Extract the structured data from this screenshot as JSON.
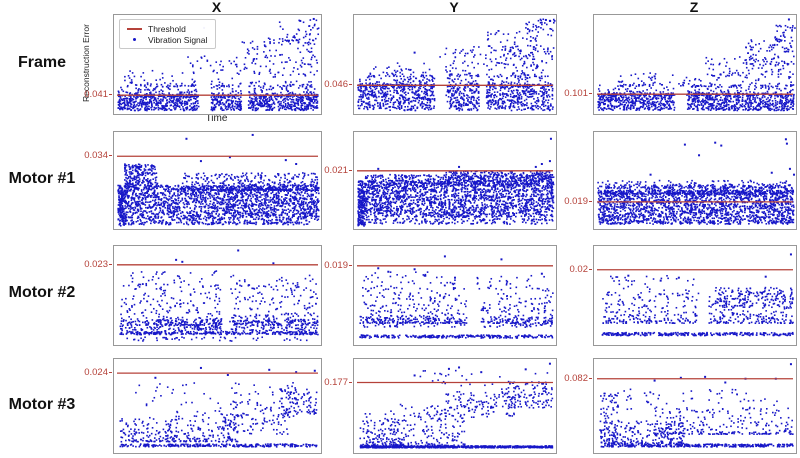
{
  "figure": {
    "columns": [
      "X",
      "Y",
      "Z"
    ],
    "rows": [
      "Frame",
      "Motor #1",
      "Motor #2",
      "Motor #3"
    ],
    "ylabel": "Reconstruction Error",
    "xlabel": "Time",
    "legend": {
      "threshold": "Threshold",
      "signal": "Vibration Signal"
    },
    "colors": {
      "threshold": "#b5423a",
      "signal": "#1717c8",
      "border": "#989898"
    }
  },
  "chart_data": [
    {
      "row": "Frame",
      "col": "X",
      "type": "scatter",
      "threshold": 0.041,
      "threshold_label": "0.041",
      "threshold_frac": 0.81,
      "seed": 11,
      "gaps": [
        [
          0.41,
          0.47
        ],
        [
          0.615,
          0.65
        ]
      ],
      "clusters": [
        {
          "x": [
            0.02,
            0.985
          ],
          "y": [
            0.8,
            0.965
          ],
          "n": 1000,
          "b": "uni",
          "g": 1
        },
        {
          "x": [
            0.02,
            0.985
          ],
          "y": [
            0.7,
            0.82
          ],
          "n": 280,
          "b": "bot",
          "g": 1
        },
        {
          "x": [
            0.05,
            0.98
          ],
          "y": [
            0.56,
            0.72
          ],
          "n": 110,
          "b": "bot",
          "g": 1
        },
        {
          "x": [
            0.35,
            0.99
          ],
          "y": [
            0.4,
            0.6
          ],
          "n": 70,
          "b": "uni"
        },
        {
          "x": [
            0.6,
            0.99
          ],
          "y": [
            0.22,
            0.5
          ],
          "n": 70,
          "b": "uni"
        },
        {
          "x": [
            0.8,
            0.995
          ],
          "y": [
            0.05,
            0.3
          ],
          "n": 45,
          "b": "uni"
        }
      ],
      "extras": [
        [
          0.435,
          0.13
        ],
        [
          0.9,
          0.06
        ],
        [
          0.965,
          0.04
        ]
      ]
    },
    {
      "row": "Frame",
      "col": "Y",
      "type": "scatter",
      "threshold": 0.046,
      "threshold_label": "0.046",
      "threshold_frac": 0.71,
      "seed": 12,
      "gaps": [
        [
          0.4,
          0.455
        ],
        [
          0.62,
          0.655
        ]
      ],
      "clusters": [
        {
          "x": [
            0.02,
            0.985
          ],
          "y": [
            0.7,
            0.965
          ],
          "n": 1000,
          "b": "uni",
          "g": 1
        },
        {
          "x": [
            0.02,
            0.985
          ],
          "y": [
            0.6,
            0.72
          ],
          "n": 260,
          "b": "bot",
          "g": 1
        },
        {
          "x": [
            0.08,
            0.98
          ],
          "y": [
            0.48,
            0.62
          ],
          "n": 110,
          "b": "bot",
          "g": 1
        },
        {
          "x": [
            0.42,
            0.99
          ],
          "y": [
            0.32,
            0.52
          ],
          "n": 80,
          "b": "uni"
        },
        {
          "x": [
            0.65,
            0.99
          ],
          "y": [
            0.15,
            0.45
          ],
          "n": 80,
          "b": "uni"
        },
        {
          "x": [
            0.85,
            0.995
          ],
          "y": [
            0.04,
            0.22
          ],
          "n": 35,
          "b": "uni"
        }
      ],
      "extras": [
        [
          0.95,
          0.05
        ],
        [
          0.97,
          0.06
        ],
        [
          0.3,
          0.38
        ]
      ]
    },
    {
      "row": "Frame",
      "col": "Z",
      "type": "scatter",
      "threshold": 0.101,
      "threshold_label": "0.101",
      "threshold_frac": 0.8,
      "seed": 13,
      "gaps": [
        [
          0.4,
          0.46
        ]
      ],
      "clusters": [
        {
          "x": [
            0.02,
            0.99
          ],
          "y": [
            0.79,
            0.965
          ],
          "n": 1000,
          "b": "uni",
          "g": 1
        },
        {
          "x": [
            0.02,
            0.99
          ],
          "y": [
            0.7,
            0.81
          ],
          "n": 240,
          "b": "bot",
          "g": 1
        },
        {
          "x": [
            0.1,
            0.99
          ],
          "y": [
            0.58,
            0.72
          ],
          "n": 110,
          "b": "bot"
        },
        {
          "x": [
            0.55,
            0.99
          ],
          "y": [
            0.42,
            0.62
          ],
          "n": 80,
          "b": "uni"
        },
        {
          "x": [
            0.75,
            0.995
          ],
          "y": [
            0.22,
            0.5
          ],
          "n": 70,
          "b": "uni"
        },
        {
          "x": [
            0.88,
            0.995
          ],
          "y": [
            0.1,
            0.3
          ],
          "n": 30,
          "b": "uni"
        }
      ],
      "extras": [
        [
          0.965,
          0.045
        ],
        [
          0.3,
          0.62
        ]
      ]
    },
    {
      "row": "Motor #1",
      "col": "X",
      "type": "scatter",
      "threshold": 0.034,
      "threshold_label": "0.034",
      "threshold_frac": 0.25,
      "seed": 21,
      "gaps": [],
      "clusters": [
        {
          "x": [
            0.02,
            0.99
          ],
          "y": [
            0.55,
            0.92
          ],
          "n": 1900,
          "b": "uni"
        },
        {
          "x": [
            0.02,
            0.06
          ],
          "y": [
            0.6,
            0.97
          ],
          "n": 150,
          "b": "uni"
        },
        {
          "x": [
            0.05,
            0.21
          ],
          "y": [
            0.33,
            0.62
          ],
          "n": 260,
          "b": "uni"
        },
        {
          "x": [
            0.33,
            0.99
          ],
          "y": [
            0.42,
            0.6
          ],
          "n": 420,
          "b": "bot"
        },
        {
          "x": [
            0.06,
            0.95
          ],
          "y": [
            0.925,
            0.955
          ],
          "n": 150,
          "b": "uni"
        }
      ],
      "extras": [
        [
          0.35,
          0.07
        ],
        [
          0.67,
          0.03
        ],
        [
          0.42,
          0.3
        ],
        [
          0.83,
          0.29
        ],
        [
          0.88,
          0.33
        ],
        [
          0.56,
          0.26
        ]
      ]
    },
    {
      "row": "Motor #1",
      "col": "Y",
      "type": "scatter",
      "threshold": 0.021,
      "threshold_label": "0.021",
      "threshold_frac": 0.4,
      "seed": 22,
      "gaps": [],
      "clusters": [
        {
          "x": [
            0.02,
            0.99
          ],
          "y": [
            0.5,
            0.88
          ],
          "n": 1900,
          "b": "uni"
        },
        {
          "x": [
            0.05,
            0.99
          ],
          "y": [
            0.44,
            0.56
          ],
          "n": 420,
          "b": "uni"
        },
        {
          "x": [
            0.45,
            0.99
          ],
          "y": [
            0.4,
            0.5
          ],
          "n": 220,
          "b": "uni"
        },
        {
          "x": [
            0.06,
            0.99
          ],
          "y": [
            0.89,
            0.95
          ],
          "n": 160,
          "b": "uni"
        },
        {
          "x": [
            0.02,
            0.055
          ],
          "y": [
            0.58,
            0.97
          ],
          "n": 150,
          "b": "uni"
        }
      ],
      "extras": [
        [
          0.975,
          0.07
        ],
        [
          0.93,
          0.33
        ],
        [
          0.9,
          0.36
        ],
        [
          0.52,
          0.36
        ],
        [
          0.12,
          0.38
        ],
        [
          0.97,
          0.3
        ]
      ]
    },
    {
      "row": "Motor #1",
      "col": "Z",
      "type": "scatter",
      "threshold": 0.019,
      "threshold_label": "0.019",
      "threshold_frac": 0.72,
      "seed": 23,
      "gaps": [],
      "clusters": [
        {
          "x": [
            0.02,
            0.99
          ],
          "y": [
            0.6,
            0.95
          ],
          "n": 1900,
          "b": "uni"
        },
        {
          "x": [
            0.04,
            0.99
          ],
          "y": [
            0.54,
            0.64
          ],
          "n": 420,
          "b": "bot"
        },
        {
          "x": [
            0.02,
            0.99
          ],
          "y": [
            0.5,
            0.58
          ],
          "n": 150,
          "b": "bot"
        }
      ],
      "extras": [
        [
          0.45,
          0.13
        ],
        [
          0.52,
          0.24
        ],
        [
          0.6,
          0.11
        ],
        [
          0.63,
          0.14
        ],
        [
          0.95,
          0.075
        ],
        [
          0.955,
          0.12
        ],
        [
          0.97,
          0.38
        ],
        [
          0.99,
          0.44
        ],
        [
          0.28,
          0.44
        ],
        [
          0.88,
          0.42
        ]
      ]
    },
    {
      "row": "Motor #2",
      "col": "X",
      "type": "scatter",
      "threshold": 0.023,
      "threshold_label": "0.023",
      "threshold_frac": 0.19,
      "seed": 31,
      "gaps": [
        [
          0.52,
          0.56
        ]
      ],
      "clusters": [
        {
          "x": [
            0.03,
            0.985
          ],
          "y": [
            0.38,
            0.8
          ],
          "n": 420,
          "b": "bot",
          "g": 1
        },
        {
          "x": [
            0.03,
            0.985
          ],
          "y": [
            0.74,
            0.86
          ],
          "n": 330,
          "b": "uni",
          "g": 1
        },
        {
          "x": [
            0.03,
            0.985
          ],
          "y": [
            0.865,
            0.895
          ],
          "n": 260,
          "b": "uni"
        },
        {
          "x": [
            0.05,
            0.97
          ],
          "y": [
            0.92,
            0.96
          ],
          "n": 45,
          "b": "uni"
        },
        {
          "x": [
            0.08,
            0.5
          ],
          "y": [
            0.24,
            0.42
          ],
          "n": 40,
          "b": "uni"
        },
        {
          "x": [
            0.55,
            0.97
          ],
          "y": [
            0.28,
            0.45
          ],
          "n": 35,
          "b": "uni"
        }
      ],
      "extras": [
        [
          0.6,
          0.045
        ],
        [
          0.77,
          0.175
        ],
        [
          0.3,
          0.14
        ],
        [
          0.33,
          0.16
        ]
      ]
    },
    {
      "row": "Motor #2",
      "col": "Y",
      "type": "scatter",
      "threshold": 0.019,
      "threshold_label": "0.019",
      "threshold_frac": 0.2,
      "seed": 32,
      "gaps": [
        [
          0.56,
          0.62
        ]
      ],
      "clusters": [
        {
          "x": [
            0.03,
            0.985
          ],
          "y": [
            0.42,
            0.78
          ],
          "n": 430,
          "b": "bot",
          "g": 1
        },
        {
          "x": [
            0.03,
            0.985
          ],
          "y": [
            0.72,
            0.82
          ],
          "n": 150,
          "b": "uni",
          "g": 1
        },
        {
          "x": [
            0.03,
            0.985
          ],
          "y": [
            0.9,
            0.93
          ],
          "n": 260,
          "b": "uni"
        },
        {
          "x": [
            0.05,
            0.5
          ],
          "y": [
            0.26,
            0.44
          ],
          "n": 40,
          "b": "uni"
        },
        {
          "x": [
            0.6,
            0.97
          ],
          "y": [
            0.3,
            0.46
          ],
          "n": 30,
          "b": "uni"
        }
      ],
      "extras": [
        [
          0.45,
          0.105
        ],
        [
          0.73,
          0.135
        ],
        [
          0.12,
          0.225
        ],
        [
          0.3,
          0.235
        ],
        [
          0.35,
          0.3
        ],
        [
          0.5,
          0.32
        ],
        [
          0.93,
          0.28
        ],
        [
          0.17,
          0.26
        ]
      ]
    },
    {
      "row": "Motor #2",
      "col": "Z",
      "type": "scatter",
      "threshold": 0.02,
      "threshold_label": "0.02",
      "threshold_frac": 0.24,
      "seed": 33,
      "gaps": [
        [
          0.52,
          0.57
        ]
      ],
      "clusters": [
        {
          "x": [
            0.04,
            0.985
          ],
          "y": [
            0.46,
            0.78
          ],
          "n": 430,
          "b": "bot",
          "g": 1
        },
        {
          "x": [
            0.6,
            0.985
          ],
          "y": [
            0.42,
            0.62
          ],
          "n": 140,
          "b": "uni"
        },
        {
          "x": [
            0.04,
            0.985
          ],
          "y": [
            0.875,
            0.905
          ],
          "n": 280,
          "b": "uni"
        },
        {
          "x": [
            0.06,
            0.5
          ],
          "y": [
            0.3,
            0.46
          ],
          "n": 30,
          "b": "uni"
        }
      ],
      "extras": [
        [
          0.975,
          0.085
        ],
        [
          0.85,
          0.31
        ],
        [
          0.33,
          0.35
        ],
        [
          0.42,
          0.32
        ],
        [
          0.17,
          0.3
        ]
      ]
    },
    {
      "row": "Motor #3",
      "col": "X",
      "type": "scatter",
      "threshold": 0.024,
      "threshold_label": "0.024",
      "threshold_frac": 0.15,
      "seed": 41,
      "gaps": [],
      "clusters": [
        {
          "x": [
            0.03,
            0.3
          ],
          "y": [
            0.62,
            0.88
          ],
          "n": 130,
          "b": "bot"
        },
        {
          "x": [
            0.25,
            0.6
          ],
          "y": [
            0.55,
            0.88
          ],
          "n": 150,
          "b": "bot"
        },
        {
          "x": [
            0.5,
            0.85
          ],
          "y": [
            0.45,
            0.8
          ],
          "n": 120,
          "b": "uni"
        },
        {
          "x": [
            0.8,
            0.98
          ],
          "y": [
            0.32,
            0.62
          ],
          "n": 90,
          "b": "uni"
        },
        {
          "x": [
            0.1,
            0.95
          ],
          "y": [
            0.25,
            0.5
          ],
          "n": 55,
          "b": "uni"
        },
        {
          "x": [
            0.03,
            0.985
          ],
          "y": [
            0.905,
            0.935
          ],
          "n": 260,
          "b": "uni"
        }
      ],
      "extras": [
        [
          0.42,
          0.095
        ],
        [
          0.75,
          0.115
        ],
        [
          0.97,
          0.125
        ],
        [
          0.2,
          0.2
        ],
        [
          0.55,
          0.17
        ],
        [
          0.88,
          0.14
        ]
      ]
    },
    {
      "row": "Motor #3",
      "col": "Y",
      "type": "scatter",
      "threshold": 0.177,
      "threshold_label": "0.177",
      "threshold_frac": 0.25,
      "seed": 42,
      "gaps": [],
      "clusters": [
        {
          "x": [
            0.03,
            0.25
          ],
          "y": [
            0.58,
            0.92
          ],
          "n": 130,
          "b": "bot"
        },
        {
          "x": [
            0.18,
            0.55
          ],
          "y": [
            0.48,
            0.92
          ],
          "n": 170,
          "b": "bot"
        },
        {
          "x": [
            0.45,
            0.8
          ],
          "y": [
            0.34,
            0.62
          ],
          "n": 130,
          "b": "uni"
        },
        {
          "x": [
            0.72,
            0.985
          ],
          "y": [
            0.24,
            0.52
          ],
          "n": 110,
          "b": "uni"
        },
        {
          "x": [
            0.3,
            0.985
          ],
          "y": [
            0.12,
            0.3
          ],
          "n": 30,
          "b": "uni"
        },
        {
          "x": [
            0.03,
            0.985
          ],
          "y": [
            0.925,
            0.945
          ],
          "n": 700,
          "b": "uni"
        }
      ],
      "extras": [
        [
          0.47,
          0.105
        ],
        [
          0.52,
          0.09
        ],
        [
          0.85,
          0.11
        ],
        [
          0.97,
          0.05
        ],
        [
          0.3,
          0.175
        ],
        [
          0.63,
          0.14
        ]
      ]
    },
    {
      "row": "Motor #3",
      "col": "Z",
      "type": "scatter",
      "threshold": 0.082,
      "threshold_label": "0.082",
      "threshold_frac": 0.21,
      "seed": 43,
      "gaps": [],
      "clusters": [
        {
          "x": [
            0.03,
            0.12
          ],
          "y": [
            0.36,
            0.9
          ],
          "n": 70,
          "b": "uni"
        },
        {
          "x": [
            0.03,
            0.45
          ],
          "y": [
            0.66,
            0.9
          ],
          "n": 210,
          "b": "bot"
        },
        {
          "x": [
            0.3,
            0.985
          ],
          "y": [
            0.52,
            0.8
          ],
          "n": 230,
          "b": "bot"
        },
        {
          "x": [
            0.1,
            0.92
          ],
          "y": [
            0.32,
            0.56
          ],
          "n": 60,
          "b": "uni"
        },
        {
          "x": [
            0.03,
            0.985
          ],
          "y": [
            0.905,
            0.935
          ],
          "n": 320,
          "b": "uni"
        }
      ],
      "extras": [
        [
          0.975,
          0.055
        ],
        [
          0.55,
          0.19
        ],
        [
          0.75,
          0.21
        ],
        [
          0.65,
          0.25
        ],
        [
          0.9,
          0.21
        ],
        [
          0.3,
          0.23
        ],
        [
          0.43,
          0.2
        ]
      ]
    }
  ]
}
